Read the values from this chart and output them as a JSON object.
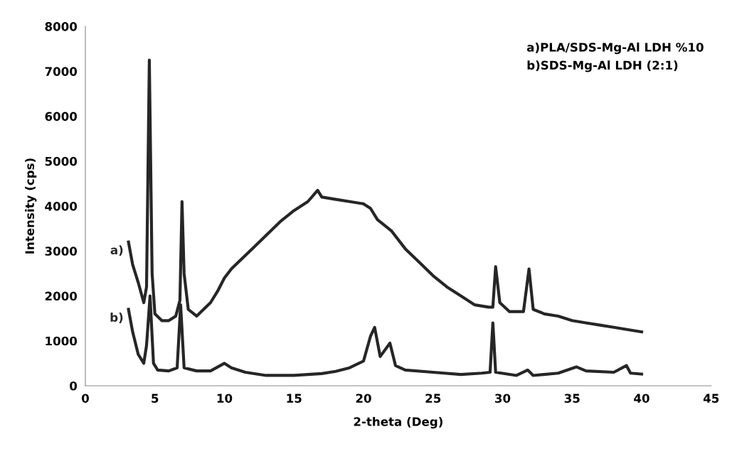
{
  "chart_data": {
    "type": "line",
    "xlabel": "2-theta (Deg)",
    "ylabel": "Intensity (cps)",
    "xlim": [
      0,
      45
    ],
    "xticks": [
      0,
      5,
      10,
      15,
      20,
      25,
      30,
      35,
      40,
      45
    ],
    "ylim": [
      0,
      8000
    ],
    "yticks": [
      0,
      1000,
      2000,
      3000,
      4000,
      5000,
      6000,
      7000,
      8000
    ],
    "grid": false,
    "legend": false,
    "marker": "none",
    "line_style": "solid",
    "annotations": [
      "a)PLA/SDS-Mg-Al LDH %10",
      "b)SDS-Mg-Al LDH (2:1)"
    ],
    "series": [
      {
        "name": "a)",
        "color": "#262626",
        "x": [
          3.1,
          3.4,
          3.8,
          4.2,
          4.4,
          4.6,
          4.8,
          5.0,
          5.5,
          6.0,
          6.5,
          6.8,
          6.95,
          7.1,
          7.4,
          8,
          8.5,
          9,
          9.5,
          10,
          10.5,
          11,
          12,
          13,
          14,
          15,
          16,
          16.7,
          17,
          18,
          19,
          20,
          20.5,
          21,
          22,
          23,
          24,
          25,
          26,
          27,
          28,
          29,
          29.3,
          29.5,
          29.8,
          30.5,
          31.5,
          31.9,
          32.2,
          33,
          34,
          35,
          36,
          37,
          38,
          39,
          40
        ],
        "values": [
          3200,
          2700,
          2300,
          1850,
          2200,
          7250,
          2500,
          1600,
          1450,
          1450,
          1550,
          1900,
          4100,
          2500,
          1700,
          1550,
          1700,
          1850,
          2100,
          2400,
          2600,
          2750,
          3050,
          3350,
          3650,
          3900,
          4100,
          4350,
          4200,
          4150,
          4100,
          4050,
          3950,
          3700,
          3450,
          3050,
          2750,
          2450,
          2200,
          2000,
          1800,
          1750,
          1750,
          2650,
          1850,
          1650,
          1650,
          2600,
          1700,
          1600,
          1550,
          1450,
          1400,
          1350,
          1300,
          1250,
          1200
        ]
      },
      {
        "name": "b)",
        "color": "#262626",
        "x": [
          3.1,
          3.4,
          3.8,
          4.2,
          4.4,
          4.65,
          4.9,
          5.2,
          6,
          6.6,
          6.85,
          7.1,
          8,
          9,
          10,
          10.5,
          11.5,
          13,
          15,
          17,
          18,
          19,
          20,
          20.5,
          20.8,
          21.2,
          21.9,
          22.3,
          23,
          25,
          27,
          28.5,
          29.1,
          29.3,
          29.5,
          31,
          31.8,
          32.2,
          34,
          35.3,
          36,
          38,
          38.9,
          39.2,
          40
        ],
        "values": [
          1700,
          1200,
          700,
          500,
          900,
          2000,
          500,
          350,
          330,
          400,
          1800,
          400,
          330,
          330,
          500,
          400,
          300,
          230,
          230,
          270,
          320,
          400,
          550,
          1100,
          1300,
          650,
          950,
          450,
          350,
          300,
          250,
          280,
          300,
          1400,
          300,
          230,
          350,
          230,
          280,
          420,
          330,
          300,
          450,
          280,
          260
        ]
      }
    ]
  }
}
